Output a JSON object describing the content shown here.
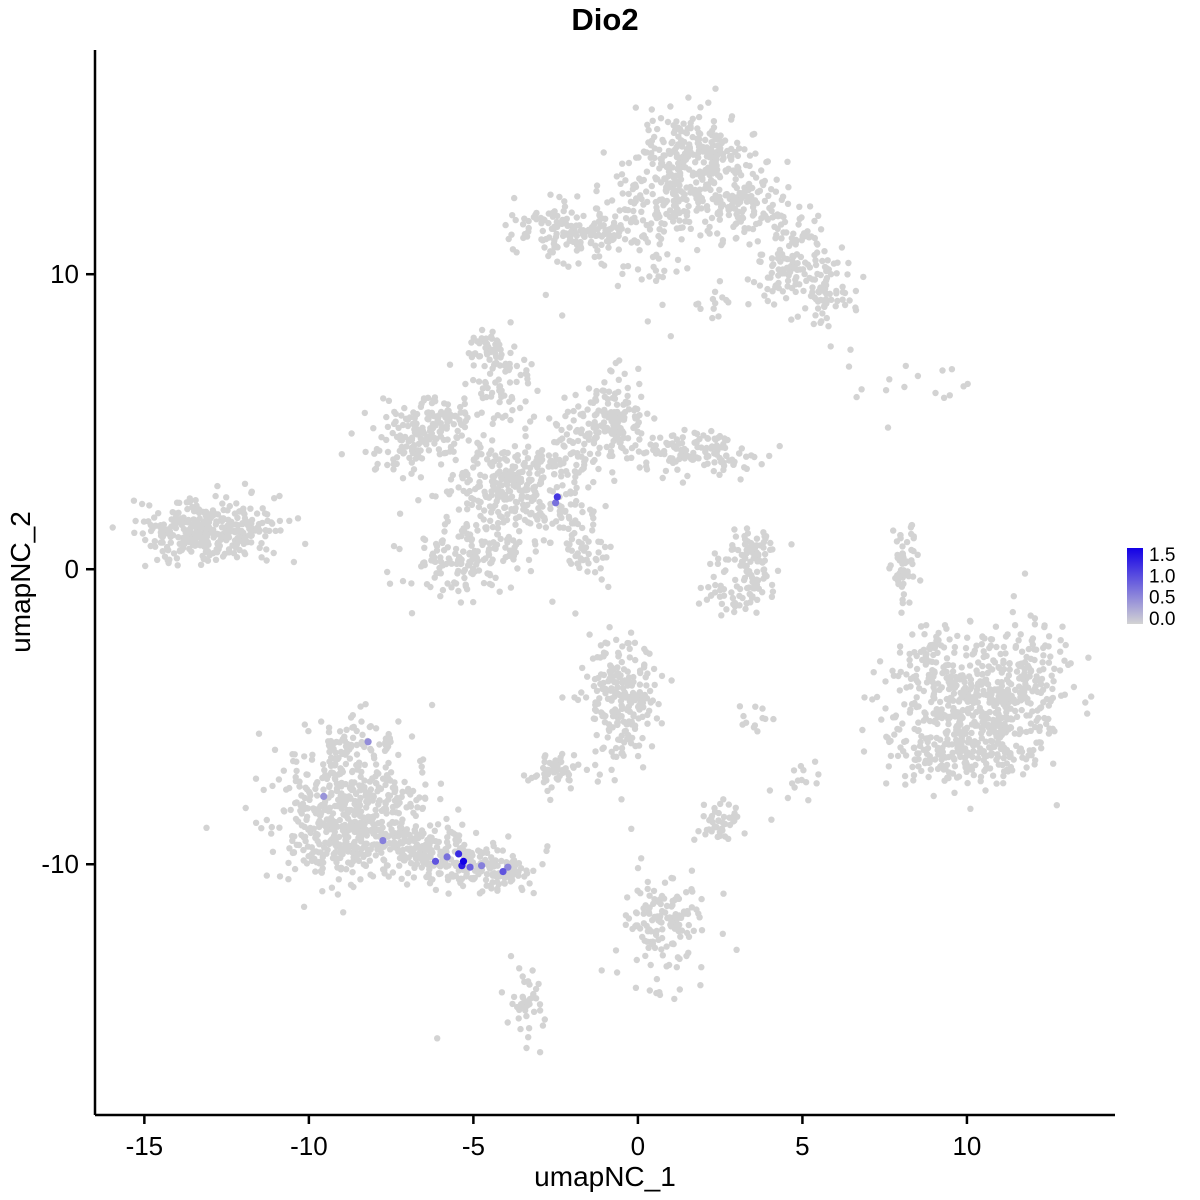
{
  "chart_data": {
    "type": "scatter",
    "title": "Dio2",
    "xlabel": "umapNC_1",
    "ylabel": "umapNC_2",
    "xlim": [
      -16.5,
      14.5
    ],
    "ylim": [
      -18.5,
      17.6
    ],
    "x_ticks": [
      -15,
      -10,
      -5,
      0,
      5,
      10
    ],
    "y_ticks": [
      -10,
      0,
      10
    ],
    "grid": false,
    "point_radius": 3.2,
    "colors": {
      "point_base": "#d3d3d3",
      "point_high": "#1300e6",
      "axis": "#000000",
      "text": "#000000",
      "background": "#ffffff"
    },
    "legend": {
      "position": "right",
      "min": 0.0,
      "max": 1.5,
      "values": [
        1.5,
        1.0,
        0.5,
        0.0
      ],
      "labels": [
        "1.5",
        "1.0",
        "0.5",
        "0.0"
      ]
    },
    "clusters": [
      {
        "name": "top-core-upper",
        "cx": 1.6,
        "cy": 13.9,
        "sx": 0.9,
        "sy": 0.85,
        "n": 260
      },
      {
        "name": "top-core-lower",
        "cx": 1.2,
        "cy": 12.4,
        "sx": 1.05,
        "sy": 0.6,
        "n": 140
      },
      {
        "name": "top-right-shoulder",
        "cx": 3.2,
        "cy": 12.6,
        "sx": 0.6,
        "sy": 0.7,
        "n": 90
      },
      {
        "name": "top-right-arm",
        "cx": 4.6,
        "cy": 10.8,
        "sx": 0.6,
        "sy": 0.9,
        "n": 120
      },
      {
        "name": "top-right-arm-tip",
        "cx": 5.5,
        "cy": 9.4,
        "sx": 0.55,
        "sy": 0.6,
        "n": 80
      },
      {
        "name": "top-left-blob",
        "cx": -2.2,
        "cy": 11.4,
        "sx": 0.75,
        "sy": 0.5,
        "n": 130
      },
      {
        "name": "top-left-connector",
        "cx": -0.7,
        "cy": 11.6,
        "sx": 0.5,
        "sy": 0.4,
        "n": 40
      },
      {
        "name": "top-below-sparse",
        "cx": 0.3,
        "cy": 10.1,
        "sx": 0.8,
        "sy": 0.5,
        "n": 25
      },
      {
        "name": "top-below-right-sparse",
        "cx": 2.3,
        "cy": 9.0,
        "sx": 0.5,
        "sy": 0.4,
        "n": 12
      },
      {
        "name": "mid-core",
        "cx": -3.8,
        "cy": 2.8,
        "sx": 1.0,
        "sy": 0.9,
        "n": 300
      },
      {
        "name": "mid-left-wing",
        "cx": -6.3,
        "cy": 5.0,
        "sx": 0.8,
        "sy": 0.6,
        "n": 130
      },
      {
        "name": "mid-left-wing-lower",
        "cx": -7.0,
        "cy": 4.2,
        "sx": 0.6,
        "sy": 0.5,
        "n": 60
      },
      {
        "name": "mid-top-arm",
        "cx": -4.2,
        "cy": 6.3,
        "sx": 0.45,
        "sy": 0.7,
        "n": 70
      },
      {
        "name": "mid-top-cap",
        "cx": -4.5,
        "cy": 7.4,
        "sx": 0.35,
        "sy": 0.3,
        "n": 35
      },
      {
        "name": "mid-topright-blob",
        "cx": -0.8,
        "cy": 5.3,
        "sx": 0.55,
        "sy": 0.65,
        "n": 120
      },
      {
        "name": "mid-topright-connector",
        "cx": -1.9,
        "cy": 4.3,
        "sx": 0.6,
        "sy": 0.5,
        "n": 60
      },
      {
        "name": "mid-right-arm",
        "cx": 1.2,
        "cy": 4.0,
        "sx": 1.0,
        "sy": 0.4,
        "n": 110
      },
      {
        "name": "mid-right-arm-tip",
        "cx": 2.8,
        "cy": 3.7,
        "sx": 0.4,
        "sy": 0.3,
        "n": 30
      },
      {
        "name": "mid-lowerleft-blob",
        "cx": -5.2,
        "cy": 0.4,
        "sx": 0.9,
        "sy": 0.7,
        "n": 160
      },
      {
        "name": "mid-lower-connector",
        "cx": -2.2,
        "cy": 1.2,
        "sx": 0.5,
        "sy": 0.5,
        "n": 40
      },
      {
        "name": "mid-comet-head",
        "cx": -1.6,
        "cy": 0.4,
        "sx": 0.35,
        "sy": 0.35,
        "n": 25
      },
      {
        "name": "far-left-main",
        "cx": -13.2,
        "cy": 1.3,
        "sx": 1.0,
        "sy": 0.55,
        "n": 280
      },
      {
        "name": "far-left-tip",
        "cx": -11.9,
        "cy": 1.6,
        "sx": 0.5,
        "sy": 0.4,
        "n": 60
      },
      {
        "name": "center-crescent-top",
        "cx": 3.4,
        "cy": 0.8,
        "sx": 0.45,
        "sy": 0.35,
        "n": 45
      },
      {
        "name": "center-crescent-right",
        "cx": 3.6,
        "cy": -0.3,
        "sx": 0.3,
        "sy": 0.45,
        "n": 40
      },
      {
        "name": "center-crescent-bottom",
        "cx": 2.9,
        "cy": -0.9,
        "sx": 0.5,
        "sy": 0.3,
        "n": 35
      },
      {
        "name": "center-crescent-left",
        "cx": 2.3,
        "cy": 0.2,
        "sx": 0.3,
        "sy": 0.3,
        "n": 10
      },
      {
        "name": "right-arc",
        "cx": 8.1,
        "cy": 0.1,
        "sx": 0.18,
        "sy": 0.65,
        "n": 55
      },
      {
        "name": "topright-sparse",
        "cx": 8.6,
        "cy": 6.5,
        "sx": 1.1,
        "sy": 0.4,
        "n": 13
      },
      {
        "name": "right-main",
        "cx": 10.5,
        "cy": -4.4,
        "sx": 1.25,
        "sy": 1.15,
        "n": 420
      },
      {
        "name": "right-lower",
        "cx": 10.0,
        "cy": -6.0,
        "sx": 1.0,
        "sy": 0.8,
        "n": 180
      },
      {
        "name": "right-upper-right",
        "cx": 11.8,
        "cy": -3.4,
        "sx": 0.7,
        "sy": 0.8,
        "n": 90
      },
      {
        "name": "right-left-protrusion",
        "cx": 8.6,
        "cy": -3.2,
        "sx": 0.5,
        "sy": 0.6,
        "n": 50
      },
      {
        "name": "right-left-sparse",
        "cx": 8.3,
        "cy": -5.8,
        "sx": 0.5,
        "sy": 0.7,
        "n": 25
      },
      {
        "name": "center-column",
        "cx": -0.5,
        "cy": -4.2,
        "sx": 0.55,
        "sy": 0.95,
        "n": 200
      },
      {
        "name": "center-column-tail",
        "cx": -0.7,
        "cy": -6.2,
        "sx": 0.4,
        "sy": 0.4,
        "n": 20
      },
      {
        "name": "center-left-small",
        "cx": -2.4,
        "cy": -6.9,
        "sx": 0.4,
        "sy": 0.33,
        "n": 55
      },
      {
        "name": "center-small-pair",
        "cx": 3.5,
        "cy": -5.2,
        "sx": 0.3,
        "sy": 0.3,
        "n": 12
      },
      {
        "name": "bottomleft-main",
        "cx": -8.6,
        "cy": -7.9,
        "sx": 1.15,
        "sy": 1.15,
        "n": 420
      },
      {
        "name": "bottomleft-lower",
        "cx": -9.3,
        "cy": -9.3,
        "sx": 0.8,
        "sy": 0.6,
        "n": 150
      },
      {
        "name": "bottomleft-tail-mid",
        "cx": -6.6,
        "cy": -9.5,
        "sx": 0.85,
        "sy": 0.5,
        "n": 160
      },
      {
        "name": "bottomleft-tail-end",
        "cx": -5.0,
        "cy": -10.1,
        "sx": 0.7,
        "sy": 0.4,
        "n": 120
      },
      {
        "name": "bottomleft-tail-tip",
        "cx": -3.9,
        "cy": -10.4,
        "sx": 0.4,
        "sy": 0.3,
        "n": 40
      },
      {
        "name": "bottomleft-top-protrusion",
        "cx": -8.8,
        "cy": -5.9,
        "sx": 0.5,
        "sy": 0.45,
        "n": 45
      },
      {
        "name": "bottom-small-blob",
        "cx": 2.5,
        "cy": -8.5,
        "sx": 0.4,
        "sy": 0.4,
        "n": 45
      },
      {
        "name": "bottom-small-pair",
        "cx": 5.0,
        "cy": -7.3,
        "sx": 0.35,
        "sy": 0.3,
        "n": 14
      },
      {
        "name": "bottom-center",
        "cx": 0.8,
        "cy": -11.9,
        "sx": 0.55,
        "sy": 0.65,
        "n": 120
      },
      {
        "name": "bottom-center-sparse",
        "cx": 0.4,
        "cy": -13.5,
        "sx": 0.6,
        "sy": 0.5,
        "n": 18
      },
      {
        "name": "bottom-strip",
        "cx": -3.3,
        "cy": -14.7,
        "sx": 0.28,
        "sy": 0.6,
        "n": 42
      }
    ],
    "noise_points": [
      [
        -6.1,
        -15.9
      ],
      [
        -2.9,
        -10.0
      ],
      [
        2.6,
        -11.0
      ],
      [
        -1.9,
        -1.5
      ],
      [
        -2.6,
        -1.1
      ],
      [
        -1.5,
        0.2
      ],
      [
        -1.3,
        -0.1
      ],
      [
        -1.1,
        -0.35
      ],
      [
        -0.9,
        -0.6
      ],
      [
        -8.7,
        4.6
      ],
      [
        -9.0,
        3.9
      ],
      [
        -8.3,
        5.3
      ],
      [
        -2.8,
        9.3
      ],
      [
        -2.3,
        8.6
      ],
      [
        7.6,
        4.8
      ],
      [
        -0.8,
        -6.8
      ],
      [
        -0.5,
        -7.8
      ],
      [
        -0.2,
        -8.8
      ],
      [
        0.1,
        -9.8
      ],
      [
        0.3,
        -10.6
      ],
      [
        -1.1,
        -13.6
      ],
      [
        1.9,
        -14.1
      ],
      [
        3.0,
        -12.9
      ],
      [
        6.8,
        6.1
      ],
      [
        9.9,
        6.2
      ],
      [
        1.0,
        7.9
      ],
      [
        0.3,
        8.4
      ]
    ],
    "expression_points": [
      {
        "x": -2.45,
        "y": 2.45,
        "value": 1.1
      },
      {
        "x": -2.5,
        "y": 2.25,
        "value": 0.7
      },
      {
        "x": -8.2,
        "y": -5.85,
        "value": 0.5
      },
      {
        "x": -9.55,
        "y": -7.7,
        "value": 0.45
      },
      {
        "x": -7.75,
        "y": -9.2,
        "value": 0.6
      },
      {
        "x": -6.15,
        "y": -9.9,
        "value": 0.9
      },
      {
        "x": -5.8,
        "y": -9.75,
        "value": 0.7
      },
      {
        "x": -5.45,
        "y": -9.65,
        "value": 1.2
      },
      {
        "x": -5.3,
        "y": -9.9,
        "value": 1.5
      },
      {
        "x": -5.35,
        "y": -10.05,
        "value": 1.3
      },
      {
        "x": -5.1,
        "y": -10.1,
        "value": 0.8
      },
      {
        "x": -4.75,
        "y": -10.05,
        "value": 0.6
      },
      {
        "x": -4.1,
        "y": -10.25,
        "value": 0.9
      },
      {
        "x": -3.95,
        "y": -10.1,
        "value": 0.55
      }
    ]
  }
}
